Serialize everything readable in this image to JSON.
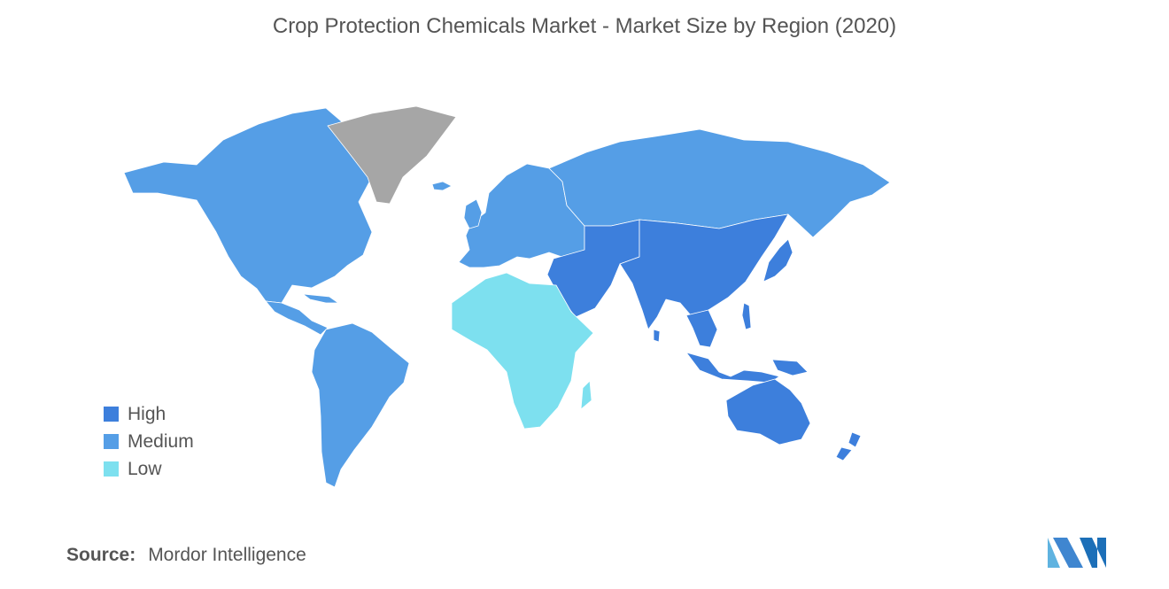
{
  "title": "Crop Protection Chemicals Market - Market Size by Region (2020)",
  "legend": [
    {
      "label": "High",
      "color": "#3d7fdc"
    },
    {
      "label": "Medium",
      "color": "#559ee6"
    },
    {
      "label": "Low",
      "color": "#7de0ef"
    }
  ],
  "no_data_color": "#a6a6a6",
  "regions": [
    {
      "name": "North America",
      "level": "Medium"
    },
    {
      "name": "South America",
      "level": "Medium"
    },
    {
      "name": "Europe",
      "level": "Medium"
    },
    {
      "name": "Russia",
      "level": "Medium"
    },
    {
      "name": "Asia-Pacific",
      "level": "High"
    },
    {
      "name": "Middle East",
      "level": "High"
    },
    {
      "name": "Australia",
      "level": "High"
    },
    {
      "name": "Africa",
      "level": "Low"
    },
    {
      "name": "Greenland",
      "level": "No data"
    }
  ],
  "source": {
    "label": "Source:",
    "value": "Mordor Intelligence"
  },
  "logo_colors": [
    "#5fb3e0",
    "#3f86d0",
    "#1c6fb8"
  ]
}
